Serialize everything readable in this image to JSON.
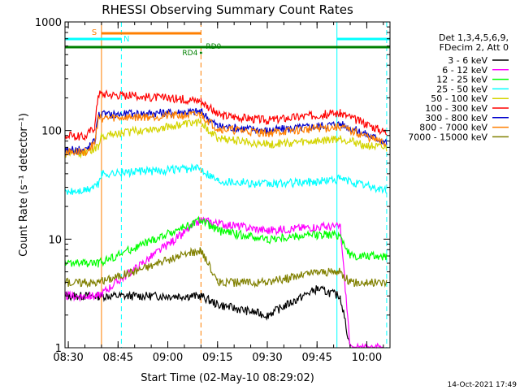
{
  "chart_data": {
    "type": "line",
    "title": "RHESSI Observing Summary Count Rates",
    "xlabel": "Start Time (02-May-10 08:29:02)",
    "ylabel": "Count Rate (s⁻¹ detector⁻¹)",
    "y_scale": "log",
    "ylim": [
      1,
      1000
    ],
    "xlim": [
      "08:29",
      "10:07"
    ],
    "x_ticks": [
      "08:30",
      "08:45",
      "09:00",
      "09:15",
      "09:30",
      "09:45",
      "10:00"
    ],
    "y_ticks": [
      "1",
      "10",
      "100",
      "1000"
    ],
    "grid": false,
    "legend_position": "right",
    "legend_header": [
      "Det 1,3,4,5,6,9,",
      "FDecim 2, Att 0"
    ],
    "footer_date": "14-Oct-2021 17:49",
    "state_bars": [
      {
        "label": "S",
        "start": "08:40",
        "end": "09:10",
        "color": "#ff7f00"
      },
      {
        "label": "N",
        "start": "08:29",
        "end": "08:46",
        "color": "#00ffff"
      },
      {
        "label": "N",
        "start": "09:51",
        "end": "10:07",
        "color": "#00ffff"
      },
      {
        "label": "RD0",
        "start": "08:29",
        "end": "10:07",
        "color": "#008000"
      }
    ],
    "markers": [
      {
        "label": "RD4",
        "time": "09:10"
      }
    ],
    "vertical_lines": [
      {
        "time": "08:40",
        "style": "solid",
        "color": "#ff7f00"
      },
      {
        "time": "08:46",
        "style": "dashed",
        "color": "#00ffff"
      },
      {
        "time": "09:10",
        "style": "dashed",
        "color": "#ff7f00"
      },
      {
        "time": "09:51",
        "style": "solid",
        "color": "#00ffff"
      },
      {
        "time": "10:06",
        "style": "dashed",
        "color": "#00ffff"
      }
    ],
    "gap": [
      "08:41",
      "09:10"
    ],
    "series": [
      {
        "name": "3 - 6 keV",
        "color": "#000000",
        "x": [
          "08:29",
          "08:35",
          "08:39",
          "09:10",
          "09:15",
          "09:30",
          "09:45",
          "09:52",
          "09:55"
        ],
        "y": [
          3,
          3,
          3,
          3,
          2.5,
          2,
          3.5,
          3,
          1
        ]
      },
      {
        "name": "6 - 12 keV",
        "color": "#ff00ff",
        "x": [
          "08:29",
          "08:35",
          "08:39",
          "09:10",
          "09:15",
          "09:30",
          "09:45",
          "09:52",
          "09:55",
          "10:05"
        ],
        "y": [
          3,
          3,
          3,
          15,
          14,
          12,
          13,
          13,
          1,
          1
        ]
      },
      {
        "name": "12 - 25 keV",
        "color": "#00ff00",
        "x": [
          "08:29",
          "08:35",
          "08:39",
          "09:10",
          "09:15",
          "09:30",
          "09:45",
          "09:52",
          "09:55",
          "10:06"
        ],
        "y": [
          6,
          6,
          6,
          15,
          12,
          10,
          11,
          11,
          7,
          7
        ]
      },
      {
        "name": "25 - 50 keV",
        "color": "#00ffff",
        "x": [
          "08:29",
          "08:35",
          "08:39",
          "08:40",
          "09:10",
          "09:15",
          "09:30",
          "09:45",
          "09:52",
          "10:00",
          "10:06"
        ],
        "y": [
          27,
          28,
          32,
          40,
          45,
          35,
          32,
          34,
          36,
          31,
          28
        ]
      },
      {
        "name": "50 - 100 keV",
        "color": "#d4d400",
        "x": [
          "08:29",
          "08:35",
          "08:39",
          "08:40",
          "09:10",
          "09:15",
          "09:30",
          "09:45",
          "09:52",
          "10:00",
          "10:06"
        ],
        "y": [
          62,
          63,
          70,
          90,
          120,
          85,
          75,
          80,
          85,
          73,
          68
        ]
      },
      {
        "name": "100 - 300 keV",
        "color": "#ff0000",
        "x": [
          "08:29",
          "08:35",
          "08:38",
          "08:39",
          "09:10",
          "09:15",
          "09:30",
          "09:45",
          "09:52",
          "10:00",
          "10:06"
        ],
        "y": [
          90,
          88,
          110,
          220,
          190,
          140,
          125,
          140,
          145,
          115,
          96
        ]
      },
      {
        "name": "300 - 800 keV",
        "color": "#0000cc",
        "x": [
          "08:29",
          "08:35",
          "08:38",
          "08:39",
          "09:10",
          "09:15",
          "09:30",
          "09:45",
          "09:52",
          "10:00",
          "10:06"
        ],
        "y": [
          66,
          66,
          80,
          140,
          150,
          110,
          100,
          110,
          115,
          92,
          78
        ]
      },
      {
        "name": "800 - 7000 keV",
        "color": "#ff7f00",
        "x": [
          "08:29",
          "08:35",
          "08:38",
          "08:39",
          "09:10",
          "09:15",
          "09:30",
          "09:45",
          "09:52",
          "10:00",
          "10:06"
        ],
        "y": [
          63,
          64,
          76,
          130,
          140,
          105,
          95,
          105,
          108,
          88,
          75
        ]
      },
      {
        "name": "7000 - 15000 keV",
        "color": "#808000",
        "x": [
          "08:29",
          "08:35",
          "08:39",
          "09:10",
          "09:15",
          "09:30",
          "09:45",
          "09:52",
          "09:55",
          "10:06"
        ],
        "y": [
          4,
          4,
          4,
          8,
          4,
          4,
          5,
          5,
          4,
          4
        ]
      }
    ]
  }
}
